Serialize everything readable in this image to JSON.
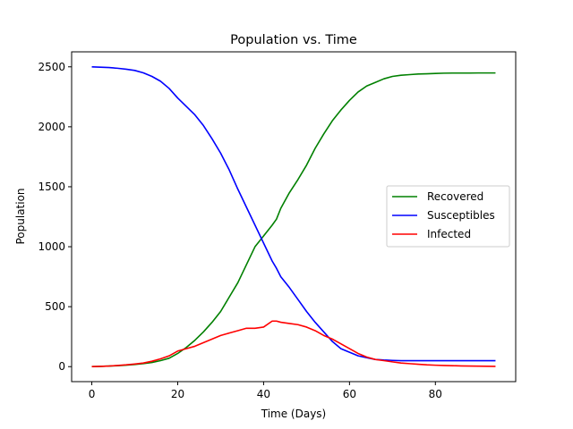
{
  "chart_data": {
    "type": "line",
    "title": "Population vs. Time",
    "xlabel": "Time (Days)",
    "ylabel": "Population",
    "xlim": [
      -4.7,
      98.7
    ],
    "ylim": [
      -125,
      2625
    ],
    "xticks": [
      0,
      20,
      40,
      60,
      80
    ],
    "yticks": [
      0,
      500,
      1000,
      1500,
      2000,
      2500
    ],
    "grid": false,
    "legend_position": "center-right",
    "x": [
      0,
      2,
      4,
      6,
      8,
      10,
      12,
      14,
      16,
      18,
      20,
      22,
      24,
      26,
      28,
      30,
      32,
      34,
      36,
      38,
      40,
      42,
      43,
      44,
      46,
      48,
      50,
      52,
      54,
      56,
      58,
      60,
      62,
      64,
      66,
      68,
      70,
      72,
      74,
      76,
      78,
      80,
      82,
      84,
      86,
      88,
      90,
      92,
      94
    ],
    "series": [
      {
        "name": "Recovered",
        "color": "#008000",
        "values": [
          0,
          2,
          5,
          8,
          12,
          18,
          25,
          35,
          50,
          70,
          110,
          160,
          220,
          290,
          370,
          460,
          580,
          700,
          850,
          1000,
          1090,
          1180,
          1230,
          1320,
          1450,
          1560,
          1680,
          1820,
          1940,
          2050,
          2140,
          2220,
          2290,
          2340,
          2370,
          2400,
          2420,
          2430,
          2435,
          2440,
          2442,
          2445,
          2447,
          2448,
          2448,
          2448,
          2449,
          2449,
          2449
        ]
      },
      {
        "name": "Susceptibles",
        "color": "#0000ff",
        "values": [
          2500,
          2497,
          2494,
          2488,
          2480,
          2470,
          2450,
          2420,
          2380,
          2320,
          2240,
          2170,
          2100,
          2010,
          1900,
          1780,
          1640,
          1480,
          1330,
          1180,
          1030,
          880,
          820,
          750,
          660,
          560,
          460,
          370,
          290,
          210,
          150,
          120,
          90,
          75,
          60,
          55,
          52,
          50,
          50,
          50,
          50,
          50,
          50,
          50,
          50,
          50,
          50,
          50,
          50
        ]
      },
      {
        "name": "Infected",
        "color": "#ff0000",
        "values": [
          0,
          2,
          5,
          10,
          15,
          22,
          30,
          45,
          65,
          90,
          130,
          150,
          170,
          200,
          230,
          260,
          280,
          300,
          320,
          320,
          330,
          380,
          380,
          370,
          360,
          350,
          330,
          300,
          260,
          230,
          190,
          150,
          110,
          80,
          60,
          50,
          40,
          30,
          25,
          20,
          15,
          12,
          10,
          8,
          6,
          5,
          4,
          3,
          2
        ]
      }
    ]
  }
}
